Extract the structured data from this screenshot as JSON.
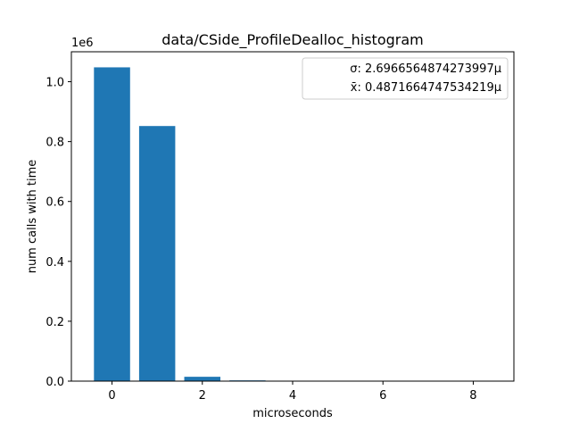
{
  "chart_data": {
    "type": "bar",
    "title": "data/CSide_ProfileDealloc_histogram",
    "xlabel": "microseconds",
    "ylabel": "num calls with time",
    "y_offset_label": "1e6",
    "x": [
      0,
      1,
      2,
      3
    ],
    "values": [
      1048000,
      852000,
      14500,
      2500
    ],
    "xlim": [
      -0.9,
      8.9
    ],
    "ylim": [
      0,
      1100000
    ],
    "xticks": [
      {
        "value": 0,
        "label": "0"
      },
      {
        "value": 2,
        "label": "2"
      },
      {
        "value": 4,
        "label": "4"
      },
      {
        "value": 6,
        "label": "6"
      },
      {
        "value": 8,
        "label": "8"
      }
    ],
    "yticks": [
      {
        "value": 0,
        "label": "0.0"
      },
      {
        "value": 200000,
        "label": "0.2"
      },
      {
        "value": 400000,
        "label": "0.4"
      },
      {
        "value": 600000,
        "label": "0.6"
      },
      {
        "value": 800000,
        "label": "0.8"
      },
      {
        "value": 1000000,
        "label": "1.0"
      }
    ],
    "bar_width": 0.8,
    "bar_color": "#1f77b4",
    "grid": false,
    "legend_position": "top-right",
    "legend": [
      "σ: 2.6966564874273997µ",
      "x̄: 0.4871664747534219µ"
    ]
  }
}
